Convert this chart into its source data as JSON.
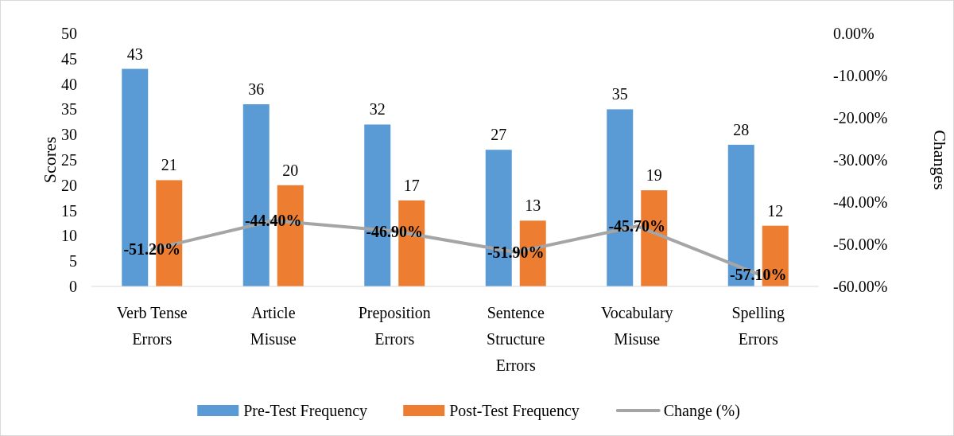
{
  "chart_data": {
    "type": "bar",
    "ylabel": "Scores",
    "y2label": "Changes",
    "categories": [
      "Verb Tense Errors",
      "Article Misuse",
      "Preposition Errors",
      "Sentence Structure Errors",
      "Vocabulary Misuse",
      "Spelling Errors"
    ],
    "series": [
      {
        "name": "Pre-Test Frequency",
        "color": "#5b9bd5",
        "values": [
          43,
          36,
          32,
          27,
          35,
          28
        ]
      },
      {
        "name": "Post-Test Frequency",
        "color": "#ed7d31",
        "values": [
          21,
          20,
          17,
          13,
          19,
          12
        ]
      },
      {
        "name": "Change (%)",
        "type": "line",
        "axis": "y2",
        "color": "#a5a5a5",
        "values": [
          -51.2,
          -44.4,
          -46.9,
          -51.9,
          -45.7,
          -57.1
        ],
        "value_labels": [
          "-51.20%",
          "-44.40%",
          "-46.90%",
          "-51.90%",
          "-45.70%",
          "-57.10%"
        ]
      }
    ],
    "ylim": [
      0,
      50
    ],
    "yticks": [
      0,
      5,
      10,
      15,
      20,
      25,
      30,
      35,
      40,
      45,
      50
    ],
    "y2lim": [
      -60,
      0
    ],
    "y2ticks": [
      {
        "value": -60,
        "label": "-60.00%"
      },
      {
        "value": -50,
        "label": "-50.00%"
      },
      {
        "value": -40,
        "label": "-40.00%"
      },
      {
        "value": -30,
        "label": "-30.00%"
      },
      {
        "value": -20,
        "label": "-20.00%"
      },
      {
        "value": -10,
        "label": "-10.00%"
      },
      {
        "value": 0,
        "label": "0.00%"
      }
    ],
    "data_labels": true,
    "grid": false,
    "legend": "bottom",
    "marker": "none",
    "line_style": "solid"
  }
}
